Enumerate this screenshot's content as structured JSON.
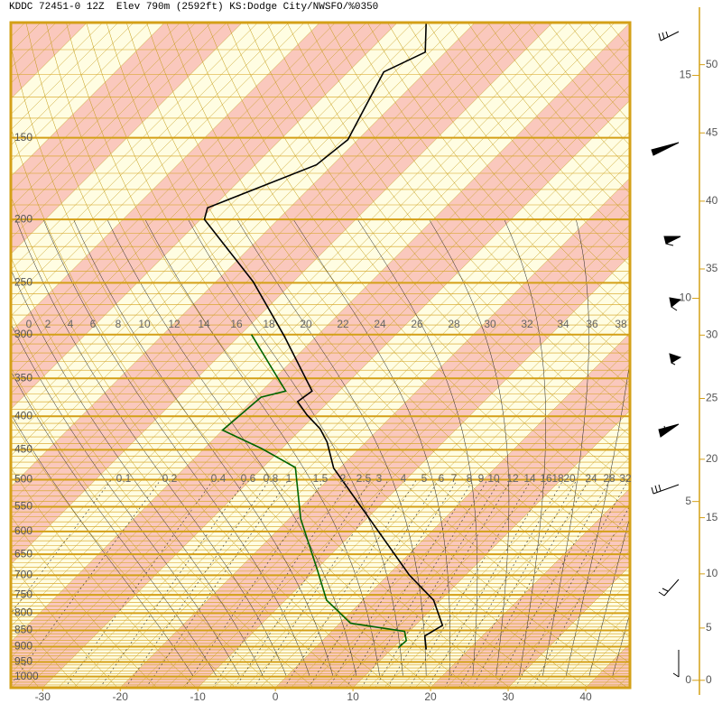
{
  "chart_data": {
    "type": "skewt",
    "title": "KDDC 72451-0 12Z  Elev 790m (2592ft) KS:Dodge City/NWSFO/%0350",
    "ylim": [
      1040,
      100
    ],
    "yscale": "log",
    "yticks": [
      150,
      200,
      250,
      300,
      350,
      400,
      450,
      500,
      550,
      600,
      650,
      700,
      750,
      800,
      850,
      900,
      950,
      1000
    ],
    "xlim": [
      -34.1,
      45.7
    ],
    "xticks": [
      -30,
      -20,
      -10,
      0,
      10,
      20,
      30,
      40
    ],
    "series": [
      {
        "color": "#000000",
        "pressure": [
          909,
          867,
          835,
          764,
          699,
          480,
          438,
          418,
          398,
          380,
          366,
          302,
          249,
          200,
          192,
          165,
          151,
          119,
          111,
          100
        ],
        "values": [
          14.5,
          12.6,
          13.5,
          9.1,
          2.7,
          -20.8,
          -25.0,
          -27.6,
          -31.1,
          -34.0,
          -33.5,
          -44.1,
          -55.2,
          -69.5,
          -70.6,
          -62.1,
          -61.3,
          -65.4,
          -62.6,
          -66.3
        ]
      },
      {
        "color": "#006400",
        "pressure": [
          903,
          881,
          853,
          829,
          764,
          688,
          574,
          479,
          448,
          420,
          374,
          366,
          300
        ],
        "values": [
          10.7,
          10.8,
          9.4,
          1.4,
          -4.7,
          -9.7,
          -18.5,
          -25.8,
          -32.6,
          -40.0,
          -39.3,
          -36.9,
          -48.6
        ]
      }
    ],
    "isotherm_scale_labels": [
      0,
      2,
      4,
      6,
      8,
      10,
      12,
      14,
      16,
      18,
      20,
      22,
      24,
      26,
      28,
      30,
      32,
      34,
      36,
      38
    ],
    "mixing_ratio_labels": [
      0.1,
      0.2,
      0.4,
      0.6,
      0.8,
      1,
      1.5,
      2,
      2.5,
      3,
      4,
      5,
      6,
      7,
      8,
      9,
      10,
      12,
      14,
      16,
      18,
      20,
      24,
      28,
      32
    ],
    "height_axis": {
      "km_ticks": [
        0,
        5,
        10,
        15
      ],
      "kft_ticks": [
        0,
        5,
        10,
        15,
        20,
        25,
        30,
        35,
        40,
        45,
        50
      ]
    }
  }
}
